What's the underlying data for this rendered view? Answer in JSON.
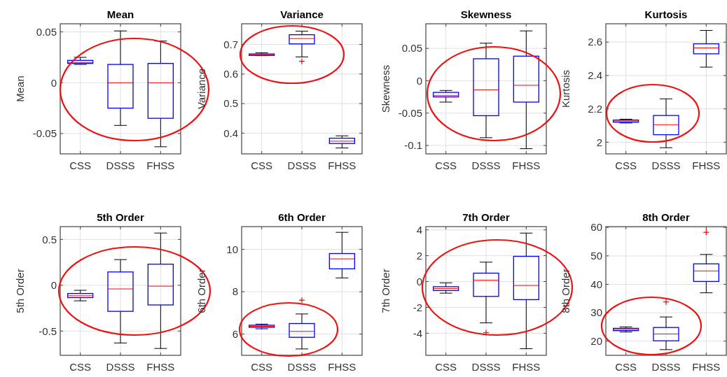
{
  "chart_data": [
    {
      "type": "box",
      "title": "Mean",
      "ylabel": "Mean",
      "categories": [
        "CSS",
        "DSSS",
        "FHSS"
      ],
      "ylim": [
        -0.07,
        0.058
      ],
      "yticks": [
        -0.05,
        0,
        0.05
      ],
      "grid": true,
      "boxes": [
        {
          "low": 0.018,
          "q1": 0.019,
          "median": 0.02,
          "q3": 0.022,
          "high": 0.025
        },
        {
          "low": -0.042,
          "q1": -0.025,
          "median": 0,
          "q3": 0.018,
          "high": 0.051
        },
        {
          "low": -0.063,
          "q1": -0.035,
          "median": 0,
          "q3": 0.019,
          "high": 0.041
        }
      ]
    },
    {
      "type": "box",
      "title": "Variance",
      "ylabel": "Variance",
      "categories": [
        "CSS",
        "DSSS",
        "FHSS"
      ],
      "ylim": [
        0.33,
        0.77
      ],
      "yticks": [
        0.4,
        0.5,
        0.6,
        0.7
      ],
      "grid": true,
      "boxes": [
        {
          "low": 0.662,
          "q1": 0.663,
          "median": 0.665,
          "q3": 0.668,
          "high": 0.672
        },
        {
          "low": 0.658,
          "q1": 0.702,
          "median": 0.72,
          "q3": 0.733,
          "high": 0.745,
          "outliers": [
            0.643
          ]
        },
        {
          "low": 0.35,
          "q1": 0.365,
          "median": 0.373,
          "q3": 0.383,
          "high": 0.391
        }
      ]
    },
    {
      "type": "box",
      "title": "Skewness",
      "ylabel": "Skewness",
      "categories": [
        "CSS",
        "DSSS",
        "FHSS"
      ],
      "ylim": [
        -0.113,
        0.088
      ],
      "yticks": [
        -0.1,
        -0.05,
        0,
        0.05
      ],
      "grid": true,
      "boxes": [
        {
          "low": -0.033,
          "q1": -0.025,
          "median": -0.023,
          "q3": -0.018,
          "high": -0.015
        },
        {
          "low": -0.088,
          "q1": -0.054,
          "median": -0.014,
          "q3": 0.034,
          "high": 0.058
        },
        {
          "low": -0.105,
          "q1": -0.033,
          "median": -0.007,
          "q3": 0.038,
          "high": 0.077
        }
      ]
    },
    {
      "type": "box",
      "title": "Kurtosis",
      "ylabel": "Kurtosis",
      "categories": [
        "CSS",
        "DSSS",
        "FHSS"
      ],
      "ylim": [
        1.93,
        2.71
      ],
      "yticks": [
        2,
        2.2,
        2.4,
        2.6
      ],
      "grid": true,
      "boxes": [
        {
          "low": 2.115,
          "q1": 2.12,
          "median": 2.127,
          "q3": 2.133,
          "high": 2.138
        },
        {
          "low": 1.967,
          "q1": 2.045,
          "median": 2.105,
          "q3": 2.16,
          "high": 2.26
        },
        {
          "low": 2.45,
          "q1": 2.53,
          "median": 2.565,
          "q3": 2.59,
          "high": 2.67
        }
      ]
    },
    {
      "type": "box",
      "title": "5th Order",
      "ylabel": "5th Order",
      "categories": [
        "CSS",
        "DSSS",
        "FHSS"
      ],
      "ylim": [
        -0.765,
        0.64
      ],
      "yticks": [
        -0.5,
        0,
        0.5
      ],
      "grid": true,
      "boxes": [
        {
          "low": -0.17,
          "q1": -0.135,
          "median": -0.115,
          "q3": -0.09,
          "high": -0.055
        },
        {
          "low": -0.63,
          "q1": -0.285,
          "median": -0.04,
          "q3": 0.145,
          "high": 0.28
        },
        {
          "low": -0.69,
          "q1": -0.215,
          "median": -0.01,
          "q3": 0.23,
          "high": 0.57
        }
      ]
    },
    {
      "type": "box",
      "title": "6th Order",
      "ylabel": "6th Order",
      "categories": [
        "CSS",
        "DSSS",
        "FHSS"
      ],
      "ylim": [
        5,
        11.07
      ],
      "yticks": [
        6,
        8,
        10
      ],
      "grid": true,
      "boxes": [
        {
          "low": 6.25,
          "q1": 6.32,
          "median": 6.37,
          "q3": 6.42,
          "high": 6.47
        },
        {
          "low": 5.3,
          "q1": 5.85,
          "median": 6.13,
          "q3": 6.5,
          "high": 6.95,
          "outliers": [
            7.6
          ]
        },
        {
          "low": 8.65,
          "q1": 9.08,
          "median": 9.55,
          "q3": 9.8,
          "high": 10.8
        }
      ]
    },
    {
      "type": "box",
      "title": "7th Order",
      "ylabel": "7th Order",
      "categories": [
        "CSS",
        "DSSS",
        "FHSS"
      ],
      "ylim": [
        -5.71,
        4.25
      ],
      "yticks": [
        -4,
        -2,
        0,
        2,
        4
      ],
      "grid": true,
      "boxes": [
        {
          "low": -0.9,
          "q1": -0.7,
          "median": -0.55,
          "q3": -0.4,
          "high": -0.1
        },
        {
          "low": -3.2,
          "q1": -1.15,
          "median": 0.1,
          "q3": 0.65,
          "high": 1.5,
          "outliers": [
            -3.95
          ]
        },
        {
          "low": -5.2,
          "q1": -1.4,
          "median": -0.3,
          "q3": 1.95,
          "high": 3.75
        }
      ]
    },
    {
      "type": "box",
      "title": "8th Order",
      "ylabel": "8th Order",
      "categories": [
        "CSS",
        "DSSS",
        "FHSS"
      ],
      "ylim": [
        15,
        60.3
      ],
      "yticks": [
        20,
        30,
        40,
        50,
        60
      ],
      "grid": true,
      "boxes": [
        {
          "low": 23.2,
          "q1": 23.7,
          "median": 24.1,
          "q3": 24.5,
          "high": 25
        },
        {
          "low": 17,
          "q1": 20.1,
          "median": 22.5,
          "q3": 24.8,
          "high": 28.5,
          "outliers": [
            33.8
          ]
        },
        {
          "low": 37,
          "q1": 41,
          "median": 44.7,
          "q3": 47.2,
          "high": 50.5,
          "outliers": [
            58.3
          ]
        }
      ]
    }
  ]
}
